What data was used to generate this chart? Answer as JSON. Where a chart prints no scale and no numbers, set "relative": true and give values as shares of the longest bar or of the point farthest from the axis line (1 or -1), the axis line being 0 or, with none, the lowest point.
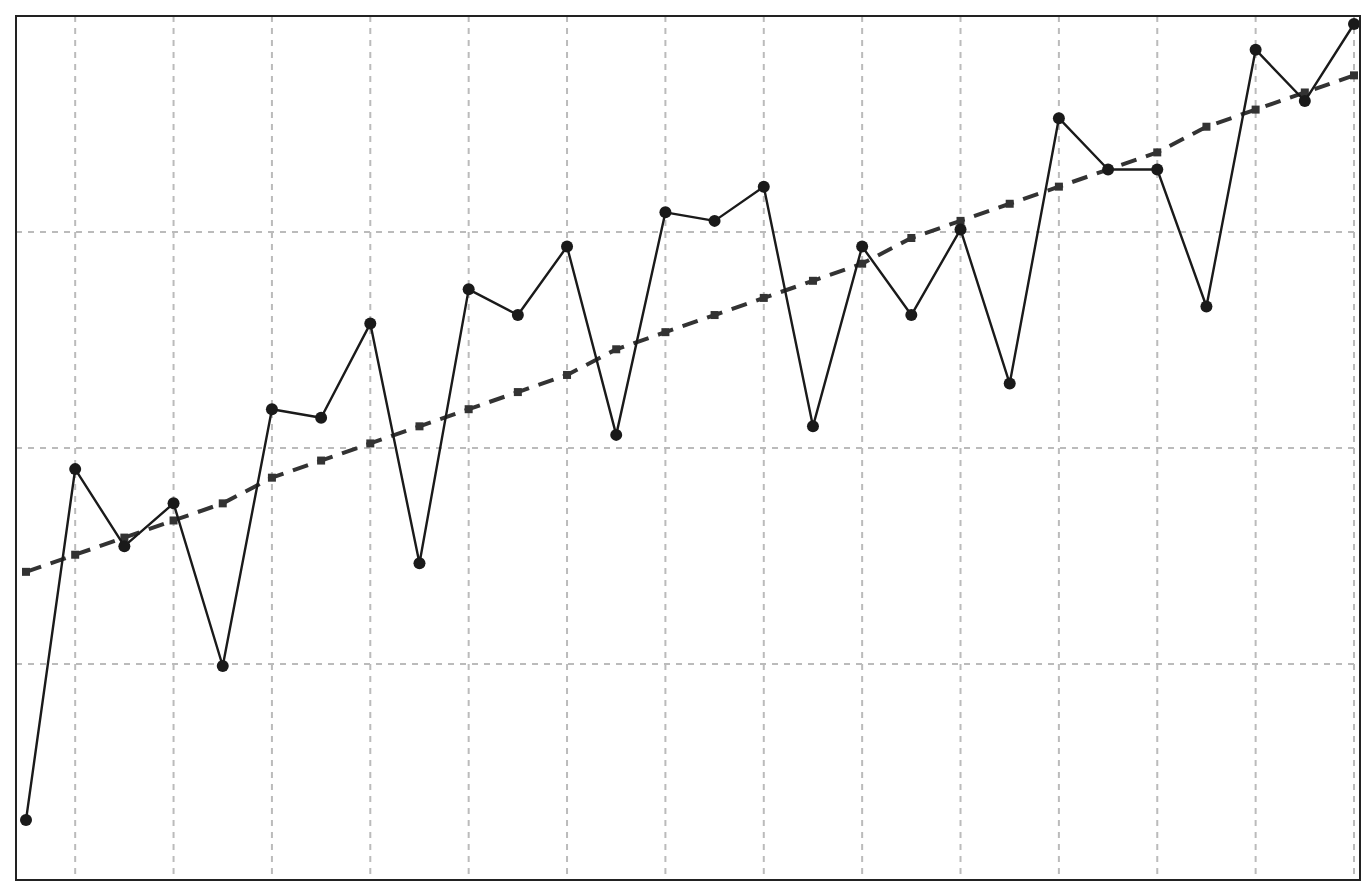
{
  "chart_data": {
    "type": "line",
    "relative": true,
    "grid": true,
    "categories": [
      null,
      null,
      null,
      null,
      null,
      null,
      null,
      null,
      null,
      null,
      null,
      null,
      null,
      null,
      null,
      null,
      null,
      null,
      null,
      null,
      null,
      null,
      null,
      null,
      null,
      null,
      null,
      null
    ],
    "series": [
      {
        "color": "#1a1a1a",
        "marker": "circle",
        "line_style": "solid",
        "values": [
          0.07,
          0.48,
          0.39,
          0.44,
          0.25,
          0.55,
          0.54,
          0.65,
          0.37,
          0.69,
          0.66,
          0.74,
          0.52,
          0.78,
          0.77,
          0.81,
          0.53,
          0.74,
          0.66,
          0.76,
          0.58,
          0.89,
          0.83,
          0.83,
          0.67,
          0.97,
          0.91,
          1
        ]
      },
      {
        "color": "#333333",
        "marker": "square",
        "line_style": "dashed",
        "values": [
          0.36,
          0.38,
          0.4,
          0.42,
          0.44,
          0.47,
          0.49,
          0.51,
          0.53,
          0.55,
          0.57,
          0.59,
          0.62,
          0.64,
          0.66,
          0.68,
          0.7,
          0.72,
          0.75,
          0.77,
          0.79,
          0.81,
          0.83,
          0.85,
          0.88,
          0.9,
          0.92,
          0.94
        ]
      }
    ]
  }
}
